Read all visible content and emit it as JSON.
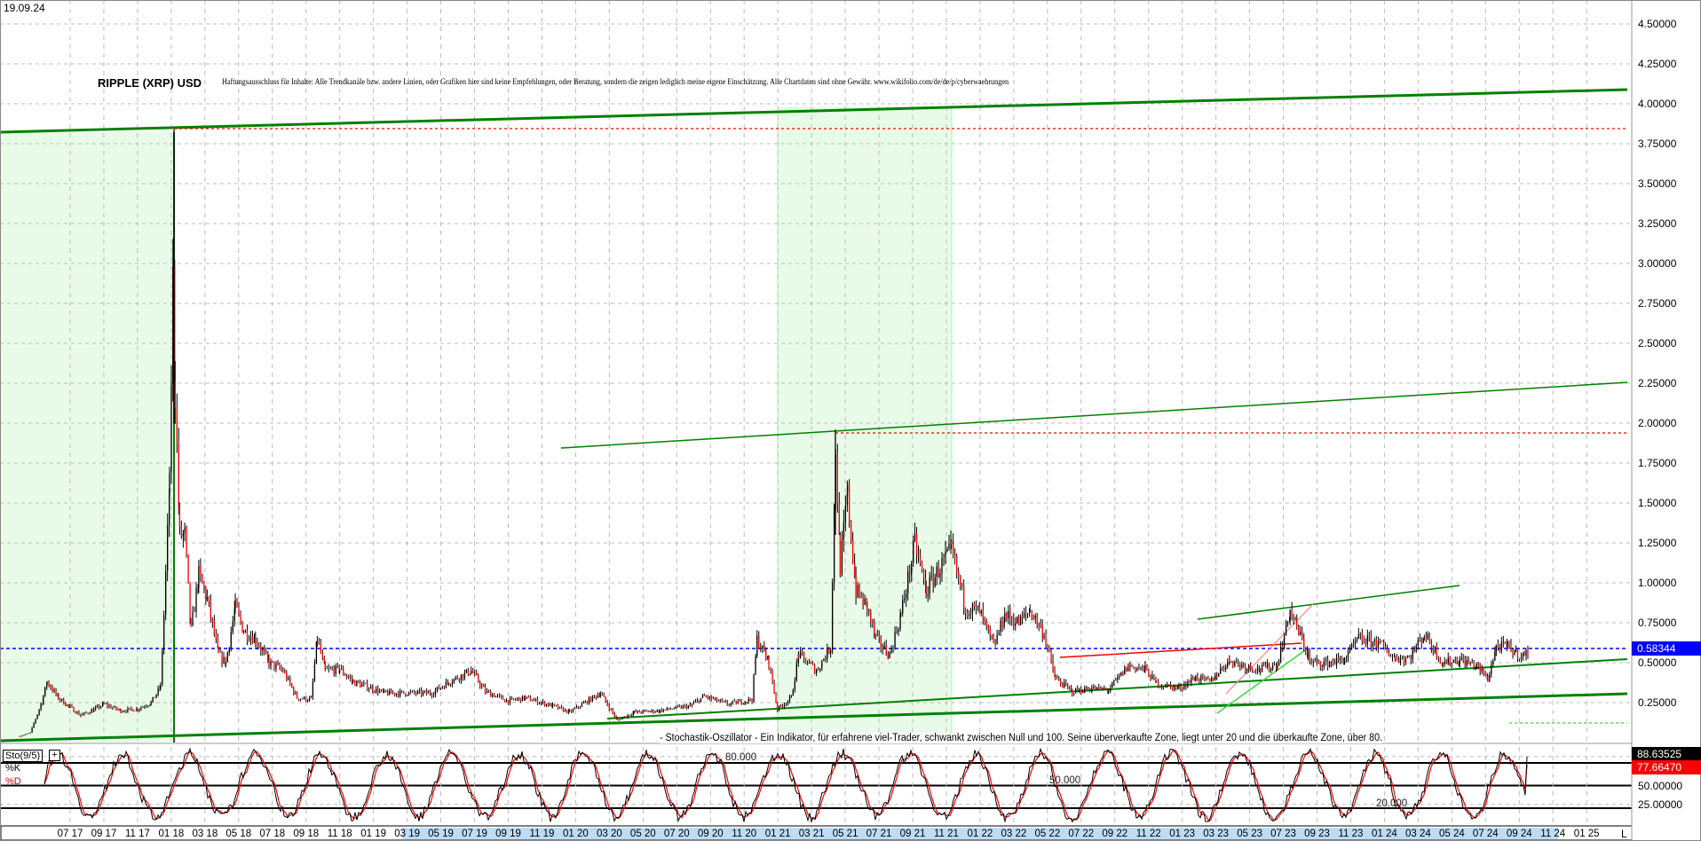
{
  "header": {
    "date": "19.09.24",
    "title": "RIPPLE (XRP) USD",
    "disclaimer": "Haftungsausschluss für Inhalte: Alle Trendkanäle bzw. andere Linien, oder Grafiken hier sind keine Empfehlungen, oder Beratung, sondern die zeigen lediglich meine eigene Einschätzung. Alle Chartdaten sind ohne Gewähr.  www.wikifolio.com/de/de/p/cyberwaehrungen"
  },
  "colors": {
    "candle_up": "#000000",
    "candle_down": "#ff0000",
    "trend_green": "#008000",
    "shade_green": "#e8fbe8",
    "last_price": "#0000ff",
    "resistance_red": "#ff0000",
    "k_line": "#000000",
    "d_line": "#ff0000",
    "axis_highlight": "#bcdcf8"
  },
  "chart_data": [
    {
      "type": "candlestick",
      "title": "RIPPLE (XRP) USD",
      "ylim": [
        0,
        4.6
      ],
      "y_ticks": [
        "4.50000",
        "4.25000",
        "4.00000",
        "3.75000",
        "3.50000",
        "3.25000",
        "3.00000",
        "2.75000",
        "2.50000",
        "2.25000",
        "2.00000",
        "1.75000",
        "1.50000",
        "1.25000",
        "1.00000",
        "0.75000",
        "0.50000",
        "0.25000"
      ],
      "last_price_label": "0.58344",
      "last_price": 0.58344,
      "grid": true,
      "series": [
        [
          "2017-04-01",
          0.04
        ],
        [
          "2017-04-20",
          0.06
        ],
        [
          "2017-05-10",
          0.25
        ],
        [
          "2017-05-20",
          0.38
        ],
        [
          "2017-06-10",
          0.28
        ],
        [
          "2017-07-01",
          0.22
        ],
        [
          "2017-07-20",
          0.17
        ],
        [
          "2017-08-10",
          0.2
        ],
        [
          "2017-09-01",
          0.24
        ],
        [
          "2017-10-01",
          0.2
        ],
        [
          "2017-11-01",
          0.21
        ],
        [
          "2017-11-25",
          0.25
        ],
        [
          "2017-12-12",
          0.35
        ],
        [
          "2017-12-18",
          0.8
        ],
        [
          "2017-12-28",
          1.6
        ],
        [
          "2018-01-04",
          2.9
        ],
        [
          "2018-01-08",
          2.2
        ],
        [
          "2018-01-16",
          1.3
        ],
        [
          "2018-01-25",
          1.3
        ],
        [
          "2018-02-06",
          0.7
        ],
        [
          "2018-02-20",
          1.05
        ],
        [
          "2018-03-05",
          0.9
        ],
        [
          "2018-03-25",
          0.55
        ],
        [
          "2018-04-08",
          0.5
        ],
        [
          "2018-04-25",
          0.85
        ],
        [
          "2018-05-10",
          0.7
        ],
        [
          "2018-06-01",
          0.65
        ],
        [
          "2018-06-25",
          0.5
        ],
        [
          "2018-07-20",
          0.45
        ],
        [
          "2018-08-15",
          0.28
        ],
        [
          "2018-09-10",
          0.27
        ],
        [
          "2018-09-21",
          0.65
        ],
        [
          "2018-10-05",
          0.45
        ],
        [
          "2018-11-01",
          0.46
        ],
        [
          "2018-11-25",
          0.38
        ],
        [
          "2018-12-20",
          0.35
        ],
        [
          "2019-01-20",
          0.31
        ],
        [
          "2019-03-01",
          0.31
        ],
        [
          "2019-04-15",
          0.31
        ],
        [
          "2019-05-15",
          0.38
        ],
        [
          "2019-06-25",
          0.45
        ],
        [
          "2019-07-20",
          0.32
        ],
        [
          "2019-09-01",
          0.26
        ],
        [
          "2019-10-01",
          0.28
        ],
        [
          "2019-11-20",
          0.23
        ],
        [
          "2019-12-20",
          0.19
        ],
        [
          "2020-02-15",
          0.31
        ],
        [
          "2020-03-15",
          0.14
        ],
        [
          "2020-04-15",
          0.19
        ],
        [
          "2020-06-01",
          0.2
        ],
        [
          "2020-07-25",
          0.23
        ],
        [
          "2020-08-20",
          0.29
        ],
        [
          "2020-10-01",
          0.24
        ],
        [
          "2020-11-15",
          0.27
        ],
        [
          "2020-11-24",
          0.65
        ],
        [
          "2020-12-15",
          0.5
        ],
        [
          "2020-12-30",
          0.21
        ],
        [
          "2021-01-25",
          0.28
        ],
        [
          "2021-02-08",
          0.55
        ],
        [
          "2021-03-10",
          0.45
        ],
        [
          "2021-04-05",
          0.6
        ],
        [
          "2021-04-14",
          1.85
        ],
        [
          "2021-04-22",
          1.1
        ],
        [
          "2021-05-05",
          1.55
        ],
        [
          "2021-05-20",
          0.95
        ],
        [
          "2021-06-10",
          0.85
        ],
        [
          "2021-06-25",
          0.65
        ],
        [
          "2021-07-20",
          0.55
        ],
        [
          "2021-08-10",
          0.8
        ],
        [
          "2021-09-05",
          1.25
        ],
        [
          "2021-09-25",
          0.95
        ],
        [
          "2021-10-20",
          1.1
        ],
        [
          "2021-11-10",
          1.2
        ],
        [
          "2021-12-05",
          0.85
        ],
        [
          "2021-12-30",
          0.82
        ],
        [
          "2022-01-25",
          0.6
        ],
        [
          "2022-02-15",
          0.8
        ],
        [
          "2022-03-10",
          0.75
        ],
        [
          "2022-03-30",
          0.83
        ],
        [
          "2022-04-25",
          0.68
        ],
        [
          "2022-05-15",
          0.4
        ],
        [
          "2022-06-15",
          0.32
        ],
        [
          "2022-07-20",
          0.34
        ],
        [
          "2022-08-20",
          0.33
        ],
        [
          "2022-09-25",
          0.48
        ],
        [
          "2022-10-25",
          0.46
        ],
        [
          "2022-11-15",
          0.37
        ],
        [
          "2022-12-25",
          0.34
        ],
        [
          "2023-01-25",
          0.41
        ],
        [
          "2023-02-20",
          0.38
        ],
        [
          "2023-03-25",
          0.52
        ],
        [
          "2023-04-20",
          0.48
        ],
        [
          "2023-05-20",
          0.46
        ],
        [
          "2023-06-20",
          0.49
        ],
        [
          "2023-07-13",
          0.82
        ],
        [
          "2023-07-25",
          0.72
        ],
        [
          "2023-08-15",
          0.55
        ],
        [
          "2023-08-18",
          0.5
        ],
        [
          "2023-09-20",
          0.5
        ],
        [
          "2023-10-20",
          0.52
        ],
        [
          "2023-11-15",
          0.65
        ],
        [
          "2023-12-20",
          0.62
        ],
        [
          "2024-01-20",
          0.53
        ],
        [
          "2024-02-15",
          0.53
        ],
        [
          "2024-03-12",
          0.68
        ],
        [
          "2024-04-15",
          0.5
        ],
        [
          "2024-05-15",
          0.52
        ],
        [
          "2024-06-15",
          0.48
        ],
        [
          "2024-07-05",
          0.4
        ],
        [
          "2024-07-20",
          0.6
        ],
        [
          "2024-08-10",
          0.6
        ],
        [
          "2024-08-25",
          0.56
        ],
        [
          "2024-09-10",
          0.54
        ],
        [
          "2024-09-19",
          0.58
        ]
      ],
      "x_ticks": [
        "07 17",
        "09 17",
        "11 17",
        "01 18",
        "03 18",
        "05 18",
        "07 18",
        "09 18",
        "11 18",
        "01 19",
        "03 19",
        "05 19",
        "07 19",
        "09 19",
        "11 19",
        "01 20",
        "03 20",
        "05 20",
        "07 20",
        "09 20",
        "11 20",
        "01 21",
        "03 21",
        "05 21",
        "07 21",
        "09 21",
        "11 21",
        "01 22",
        "03 22",
        "05 22",
        "07 22",
        "09 22",
        "11 22",
        "01 23",
        "03 23",
        "05 23",
        "07 23",
        "09 23",
        "11 23",
        "01 24",
        "03 24",
        "05 24",
        "07 24",
        "09 24",
        "11 24",
        "01 25"
      ],
      "axis_end_label": "L"
    },
    {
      "type": "line",
      "name": "Sto(9/5)",
      "series_names": [
        "%K",
        "%D"
      ],
      "ylim": [
        0,
        100
      ],
      "levels": [
        {
          "value": 80,
          "label": "80.000"
        },
        {
          "value": 50,
          "label": "50.000"
        },
        {
          "value": 20,
          "label": "20.000"
        }
      ],
      "last_k_label": "88.63525",
      "last_d_label": "77.66470",
      "last_k": 88.63525,
      "last_d": 77.6647,
      "y_ticks": [
        "50.00000",
        "25.00000"
      ],
      "description": "- Stochastik-Oszillator - Ein Indikator, für erfahrene viel-Trader, schwankt zwischen Null und 100. Seine überverkaufte Zone, liegt unter 20 und die überkaufte Zone, über 80."
    }
  ]
}
